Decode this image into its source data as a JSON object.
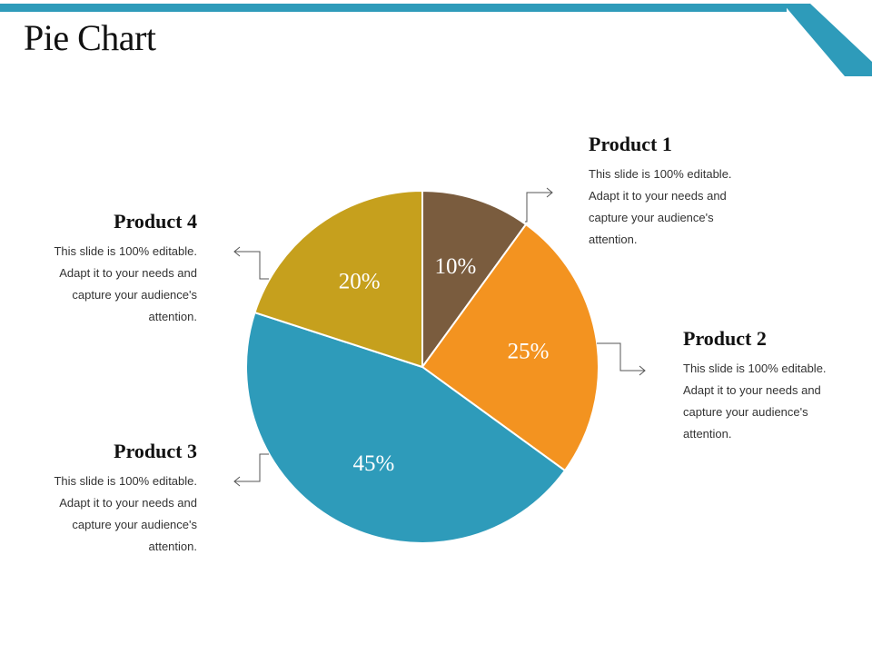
{
  "page": {
    "title": "Pie Chart"
  },
  "colors": {
    "accent": "#2E9BBA",
    "slice_edge": "#ffffff",
    "connector": "#555555"
  },
  "chart_data": {
    "type": "pie",
    "title": "Pie Chart",
    "start_angle_deg": 0,
    "direction": "clockwise",
    "slices": [
      {
        "name": "Product 1",
        "value": 10,
        "label": "10%",
        "color": "#7A5C3E",
        "description": "This slide is 100% editable. Adapt it to your needs and capture your audience's attention."
      },
      {
        "name": "Product 2",
        "value": 25,
        "label": "25%",
        "color": "#F39320",
        "description": "This slide is 100% editable. Adapt it to your needs and capture your audience's attention."
      },
      {
        "name": "Product 3",
        "value": 45,
        "label": "45%",
        "color": "#2E9BBA",
        "description": "This slide is 100% editable. Adapt it to your needs and capture your audience's attention."
      },
      {
        "name": "Product 4",
        "value": 20,
        "label": "20%",
        "color": "#C6A01D",
        "description": "This slide is 100% editable. Adapt it to your needs and capture your audience's attention."
      }
    ]
  }
}
